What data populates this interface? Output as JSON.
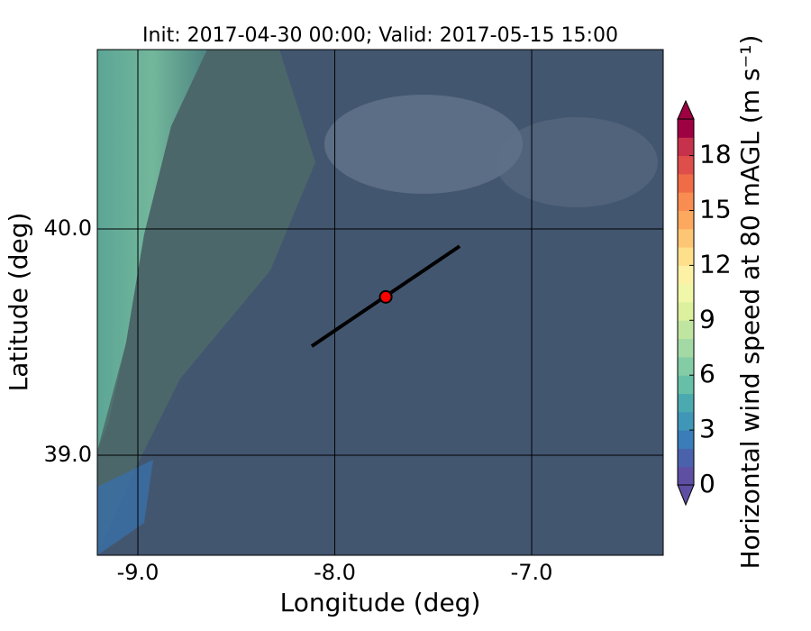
{
  "chart_data": {
    "type": "map",
    "title": "Init: 2017-04-30 00:00; Valid: 2017-05-15 15:00",
    "x_label": "Longitude (deg)",
    "y_label": "Latitude (deg)",
    "xlim": [
      -9.206,
      -6.332
    ],
    "ylim": [
      38.558,
      40.793
    ],
    "xticks": [
      {
        "value": -9,
        "label": "-9.0"
      },
      {
        "value": -8,
        "label": "-8.0"
      },
      {
        "value": -7,
        "label": "-7.0"
      }
    ],
    "yticks": [
      {
        "value": 39,
        "label": "39.0"
      },
      {
        "value": 40,
        "label": "40.0"
      }
    ],
    "grid": true,
    "transect": {
      "x": [
        -8.117,
        -7.366
      ],
      "y": [
        39.482,
        39.924
      ],
      "color": "#000000"
    },
    "site": {
      "x": -7.741,
      "y": 39.7,
      "color": "#ff0000"
    },
    "colorbar": {
      "label": "Horizontal wind speed at 80 mAGL (m s⁻¹)",
      "lim": [
        0,
        20
      ],
      "ticks": [
        0,
        3,
        6,
        9,
        12,
        15,
        18
      ],
      "colors": [
        "#5e4fa2",
        "#4a62ab",
        "#3a7db8",
        "#3f96b7",
        "#4ba9b0",
        "#66bfa6",
        "#84cca5",
        "#a2d9a4",
        "#c0e5a0",
        "#dcf09e",
        "#f0f7a8",
        "#fdf1a6",
        "#fee08b",
        "#fdc675",
        "#fca85e",
        "#f88c51",
        "#ef6c47",
        "#de4e4b",
        "#c6324b",
        "#9e0142"
      ]
    }
  }
}
